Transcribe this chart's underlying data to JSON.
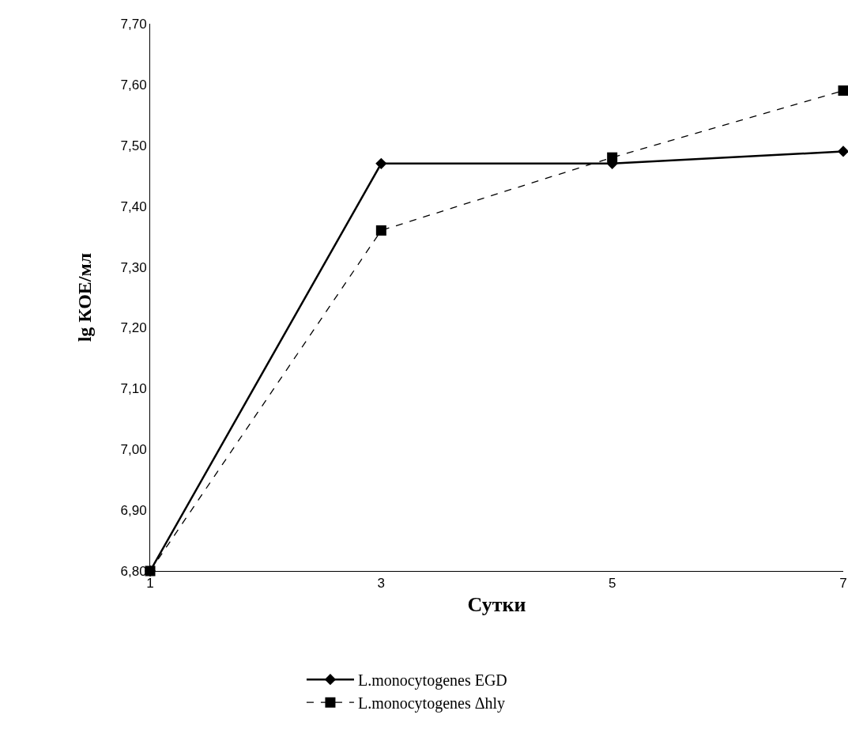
{
  "chart_data": {
    "type": "line",
    "xlabel": "Сутки",
    "ylabel": "lg КОЕ/мл",
    "categories": [
      "1",
      "3",
      "5",
      "7"
    ],
    "series": [
      {
        "name": "L.monocytogenes EGD",
        "color": "#000000",
        "values": [
          6.8,
          7.47,
          7.47,
          7.49
        ],
        "marker": "diamond",
        "line_style": "solid"
      },
      {
        "name": "L.monocytogenes Δhly",
        "color": "#000000",
        "values": [
          6.8,
          7.36,
          7.48,
          7.59
        ],
        "marker": "square",
        "line_style": "dashed"
      }
    ],
    "ylim": [
      6.8,
      7.7
    ],
    "yticks": [
      {
        "value": 6.8,
        "label": "6,80"
      },
      {
        "value": 6.9,
        "label": "6,90"
      },
      {
        "value": 7.0,
        "label": "7,00"
      },
      {
        "value": 7.1,
        "label": "7,10"
      },
      {
        "value": 7.2,
        "label": "7,20"
      },
      {
        "value": 7.3,
        "label": "7,30"
      },
      {
        "value": 7.4,
        "label": "7,40"
      },
      {
        "value": 7.5,
        "label": "7,50"
      },
      {
        "value": 7.6,
        "label": "7,60"
      },
      {
        "value": 7.7,
        "label": "7,70"
      }
    ],
    "grid": false,
    "legend": "bottom"
  }
}
